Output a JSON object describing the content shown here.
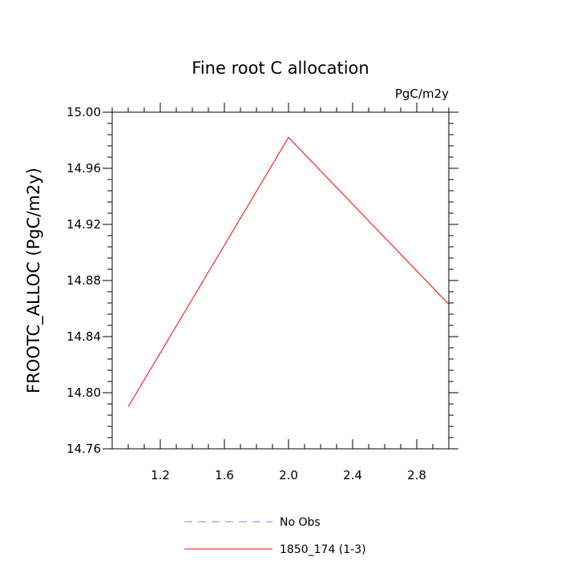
{
  "chart_data": {
    "type": "line",
    "title": "Fine root C allocation",
    "units_label": "PgC/m2y",
    "ylabel": "FROOTC_ALLOC  (PgC/m2y)",
    "xlabel": "",
    "xlim": [
      0.9,
      3.0
    ],
    "ylim": [
      14.76,
      15.0
    ],
    "xticks": [
      1.2,
      1.6,
      2.0,
      2.4,
      2.8
    ],
    "xtick_labels": [
      "1.2",
      "1.6",
      "2.0",
      "2.4",
      "2.8"
    ],
    "yticks": [
      14.76,
      14.8,
      14.84,
      14.88,
      14.92,
      14.96,
      15.0
    ],
    "ytick_labels": [
      "14.76",
      "14.80",
      "14.84",
      "14.88",
      "14.92",
      "14.96",
      "15.00"
    ],
    "grid": false,
    "legend_position": "bottom",
    "series": [
      {
        "name": "No Obs",
        "color": "#8080ff",
        "dash": "dashed",
        "x": [],
        "y": []
      },
      {
        "name": "1850_174 (1-3)",
        "color": "#ff0000",
        "dash": "solid",
        "x": [
          1.0,
          2.0,
          3.0
        ],
        "y": [
          14.79,
          14.982,
          14.863
        ]
      }
    ]
  }
}
